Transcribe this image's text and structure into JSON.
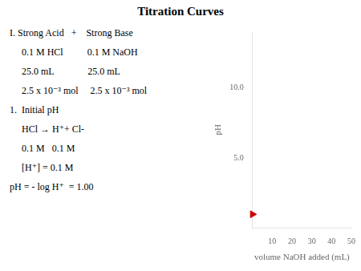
{
  "chart_data": {
    "type": "scatter",
    "title": "Titration Curves",
    "annotations": [
      "I. Strong Acid   +    Strong Base",
      "     0.1 M HCl          0.1 M NaOH",
      "     25.0 mL              25.0 mL",
      "     2.5 x 10⁻³ mol     2.5 x 10⁻³ mol",
      "1.  Initial pH",
      "     HCl → H⁺+ Cl-",
      "     0.1 M   0.1 M",
      "     [H⁺] = 0.1 M",
      "pH = - log H⁺  = 1.00"
    ],
    "x": [
      0
    ],
    "values": [
      1.0
    ],
    "color": "#CC0000",
    "marker": "triangle",
    "xlabel": "volume NaOH added (mL)",
    "ylabel": "pH",
    "xlim": [
      0,
      50
    ],
    "ylim": [
      0,
      14
    ],
    "xticks": [
      10,
      20,
      30,
      40,
      50
    ],
    "yticks": [
      {
        "value": 5.0,
        "label": "5.0"
      },
      {
        "value": 10.0,
        "label": "10.0"
      }
    ],
    "grid": false
  }
}
